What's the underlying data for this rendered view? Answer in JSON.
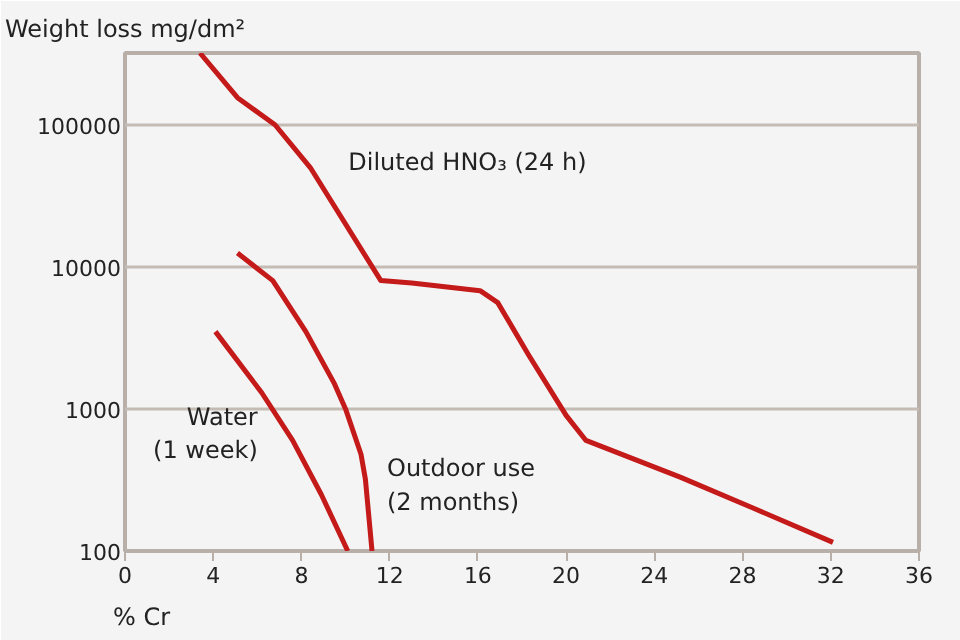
{
  "chart_data": {
    "type": "line",
    "ylabel": "Weight loss mg/dm²",
    "xlabel": "% Cr",
    "log": "y",
    "grid": "y",
    "xlim": [
      0,
      36
    ],
    "xticks": [
      0,
      4,
      8,
      12,
      16,
      20,
      24,
      28,
      32,
      36
    ],
    "ylim": [
      100,
      320000
    ],
    "yticks": [
      100,
      1000,
      10000,
      100000
    ],
    "line_style": "solid",
    "marker": "none",
    "series": [
      {
        "name": "Diluted HNO₃ (24 h)",
        "color": "#c41a1a",
        "x": [
          3.4,
          5.1,
          6.8,
          8.4,
          11.6,
          13,
          16.1,
          16.9,
          18.3,
          20,
          20.9,
          25.2,
          28.5,
          32.1
        ],
        "values": [
          320000,
          155000,
          100000,
          50000,
          8000,
          7700,
          6800,
          5600,
          2400,
          900,
          600,
          330,
          200,
          115
        ]
      },
      {
        "name": "Outdoor use\n(2 months)",
        "color": "#c41a1a",
        "x": [
          5.1,
          6.7,
          8.2,
          9.5,
          10,
          10.7,
          10.9,
          11.2
        ],
        "values": [
          12500,
          8000,
          3500,
          1500,
          1000,
          480,
          320,
          100
        ]
      },
      {
        "name": "Water\n(1 week)",
        "color": "#c41a1a",
        "x": [
          4.1,
          6.2,
          7.6,
          8.9,
          10.1
        ],
        "values": [
          3500,
          1300,
          600,
          250,
          100
        ]
      }
    ]
  }
}
